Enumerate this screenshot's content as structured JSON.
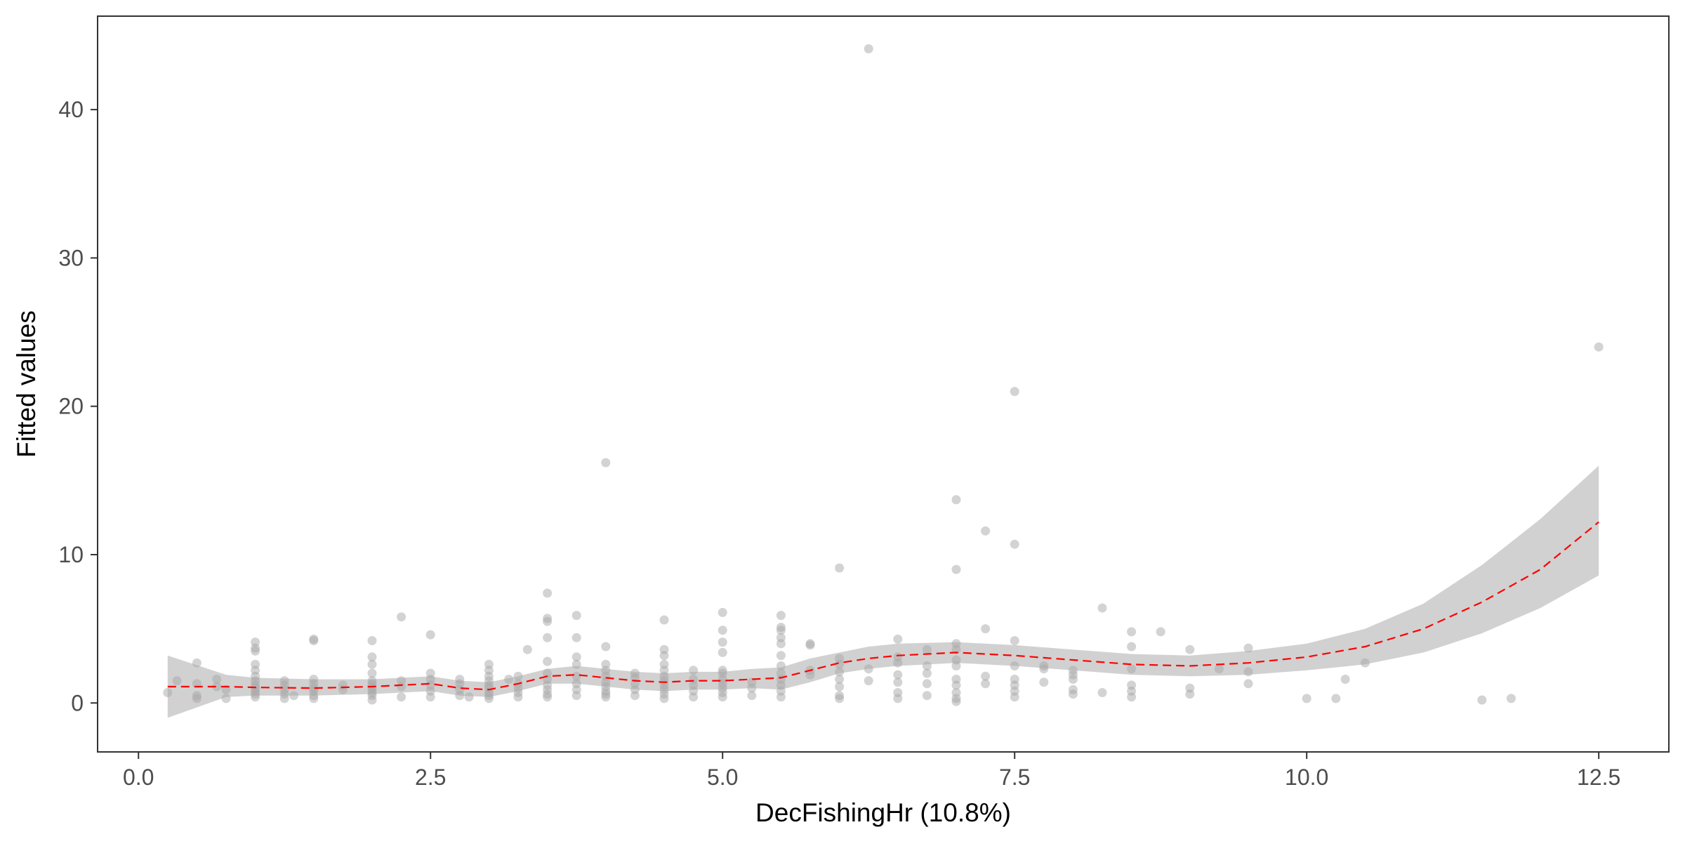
{
  "chart_data": {
    "type": "scatter",
    "title": "",
    "xlabel": "DecFishingHr  (10.8%)",
    "ylabel": "Fitted values",
    "xlim": [
      -0.35,
      13.1
    ],
    "ylim": [
      -3.3,
      46.3
    ],
    "x_ticks": [
      0.0,
      2.5,
      5.0,
      7.5,
      10.0,
      12.5
    ],
    "x_tick_labels": [
      "0.0",
      "2.5",
      "5.0",
      "7.5",
      "10.0",
      "12.5"
    ],
    "y_ticks": [
      0,
      10,
      20,
      30,
      40
    ],
    "y_tick_labels": [
      "0",
      "10",
      "20",
      "30",
      "40"
    ],
    "grid": false,
    "legend": "none",
    "colors": {
      "points": "#a8a8a8",
      "smooth_line": "#ff0000",
      "confidence_band": "#bdbdbd",
      "frame": "#333333",
      "text": "#4d4d4d"
    },
    "series": [
      {
        "type": "scatter",
        "points": [
          [
            0.25,
            0.7
          ],
          [
            0.33,
            1.5
          ],
          [
            0.5,
            0.3
          ],
          [
            0.5,
            0.5
          ],
          [
            0.5,
            1.3
          ],
          [
            0.5,
            2.7
          ],
          [
            0.67,
            1.1
          ],
          [
            0.67,
            1.6
          ],
          [
            0.75,
            0.3
          ],
          [
            0.75,
            0.9
          ],
          [
            1.0,
            0.4
          ],
          [
            1.0,
            0.6
          ],
          [
            1.0,
            0.8
          ],
          [
            1.0,
            1.0
          ],
          [
            1.0,
            1.2
          ],
          [
            1.0,
            1.5
          ],
          [
            1.0,
            1.8
          ],
          [
            1.0,
            2.2
          ],
          [
            1.0,
            2.6
          ],
          [
            1.0,
            3.5
          ],
          [
            1.0,
            3.7
          ],
          [
            1.0,
            4.1
          ],
          [
            1.25,
            0.3
          ],
          [
            1.25,
            0.6
          ],
          [
            1.25,
            0.9
          ],
          [
            1.25,
            1.2
          ],
          [
            1.25,
            1.5
          ],
          [
            1.33,
            0.5
          ],
          [
            1.5,
            0.3
          ],
          [
            1.5,
            0.5
          ],
          [
            1.5,
            0.8
          ],
          [
            1.5,
            1.0
          ],
          [
            1.5,
            1.3
          ],
          [
            1.5,
            1.6
          ],
          [
            1.5,
            4.2
          ],
          [
            1.5,
            4.3
          ],
          [
            1.75,
            0.9
          ],
          [
            1.75,
            1.2
          ],
          [
            2.0,
            0.2
          ],
          [
            2.0,
            0.5
          ],
          [
            2.0,
            0.7
          ],
          [
            2.0,
            0.9
          ],
          [
            2.0,
            1.1
          ],
          [
            2.0,
            1.3
          ],
          [
            2.0,
            1.5
          ],
          [
            2.0,
            2.0
          ],
          [
            2.0,
            2.6
          ],
          [
            2.0,
            3.1
          ],
          [
            2.0,
            4.2
          ],
          [
            2.25,
            0.4
          ],
          [
            2.25,
            1.1
          ],
          [
            2.25,
            1.5
          ],
          [
            2.25,
            5.8
          ],
          [
            2.5,
            0.4
          ],
          [
            2.5,
            0.8
          ],
          [
            2.5,
            1.2
          ],
          [
            2.5,
            1.6
          ],
          [
            2.5,
            2.0
          ],
          [
            2.5,
            4.6
          ],
          [
            2.75,
            0.5
          ],
          [
            2.75,
            0.9
          ],
          [
            2.75,
            1.3
          ],
          [
            2.75,
            1.6
          ],
          [
            2.83,
            0.4
          ],
          [
            3.0,
            0.3
          ],
          [
            3.0,
            0.5
          ],
          [
            3.0,
            0.7
          ],
          [
            3.0,
            1.0
          ],
          [
            3.0,
            1.2
          ],
          [
            3.0,
            1.5
          ],
          [
            3.0,
            1.8
          ],
          [
            3.0,
            2.2
          ],
          [
            3.0,
            2.6
          ],
          [
            3.17,
            1.6
          ],
          [
            3.25,
            0.4
          ],
          [
            3.25,
            0.7
          ],
          [
            3.25,
            1.0
          ],
          [
            3.25,
            1.3
          ],
          [
            3.25,
            1.8
          ],
          [
            3.33,
            3.6
          ],
          [
            3.5,
            0.4
          ],
          [
            3.5,
            0.6
          ],
          [
            3.5,
            0.9
          ],
          [
            3.5,
            1.2
          ],
          [
            3.5,
            1.6
          ],
          [
            3.5,
            2.0
          ],
          [
            3.5,
            2.8
          ],
          [
            3.5,
            4.4
          ],
          [
            3.5,
            5.5
          ],
          [
            3.5,
            5.7
          ],
          [
            3.5,
            7.4
          ],
          [
            3.75,
            0.5
          ],
          [
            3.75,
            0.9
          ],
          [
            3.75,
            1.3
          ],
          [
            3.75,
            1.8
          ],
          [
            3.75,
            2.6
          ],
          [
            3.75,
            3.1
          ],
          [
            3.75,
            4.4
          ],
          [
            3.75,
            5.9
          ],
          [
            4.0,
            0.4
          ],
          [
            4.0,
            0.6
          ],
          [
            4.0,
            0.8
          ],
          [
            4.0,
            1.1
          ],
          [
            4.0,
            1.4
          ],
          [
            4.0,
            1.8
          ],
          [
            4.0,
            2.2
          ],
          [
            4.0,
            2.6
          ],
          [
            4.0,
            3.8
          ],
          [
            4.0,
            16.2
          ],
          [
            4.25,
            0.5
          ],
          [
            4.25,
            0.9
          ],
          [
            4.25,
            1.3
          ],
          [
            4.25,
            1.7
          ],
          [
            4.25,
            2.0
          ],
          [
            4.5,
            0.3
          ],
          [
            4.5,
            0.6
          ],
          [
            4.5,
            0.9
          ],
          [
            4.5,
            1.2
          ],
          [
            4.5,
            1.5
          ],
          [
            4.5,
            1.8
          ],
          [
            4.5,
            2.2
          ],
          [
            4.5,
            2.6
          ],
          [
            4.5,
            3.2
          ],
          [
            4.5,
            3.6
          ],
          [
            4.5,
            5.6
          ],
          [
            4.75,
            0.4
          ],
          [
            4.75,
            0.8
          ],
          [
            4.75,
            1.2
          ],
          [
            4.75,
            1.6
          ],
          [
            4.75,
            2.2
          ],
          [
            5.0,
            0.4
          ],
          [
            5.0,
            0.7
          ],
          [
            5.0,
            1.0
          ],
          [
            5.0,
            1.3
          ],
          [
            5.0,
            1.6
          ],
          [
            5.0,
            2.0
          ],
          [
            5.0,
            2.2
          ],
          [
            5.0,
            3.4
          ],
          [
            5.0,
            4.1
          ],
          [
            5.0,
            4.9
          ],
          [
            5.0,
            6.1
          ],
          [
            5.25,
            0.5
          ],
          [
            5.25,
            1.0
          ],
          [
            5.25,
            1.4
          ],
          [
            5.5,
            0.4
          ],
          [
            5.5,
            0.8
          ],
          [
            5.5,
            1.2
          ],
          [
            5.5,
            1.6
          ],
          [
            5.5,
            2.0
          ],
          [
            5.5,
            2.5
          ],
          [
            5.5,
            3.2
          ],
          [
            5.5,
            4.0
          ],
          [
            5.5,
            4.4
          ],
          [
            5.5,
            4.9
          ],
          [
            5.5,
            5.1
          ],
          [
            5.5,
            5.9
          ],
          [
            5.75,
            1.9
          ],
          [
            5.75,
            2.2
          ],
          [
            5.75,
            3.9
          ],
          [
            5.75,
            4.0
          ],
          [
            6.0,
            0.3
          ],
          [
            6.0,
            0.5
          ],
          [
            6.0,
            1.1
          ],
          [
            6.0,
            1.6
          ],
          [
            6.0,
            2.1
          ],
          [
            6.0,
            2.6
          ],
          [
            6.0,
            3.0
          ],
          [
            6.0,
            9.1
          ],
          [
            6.25,
            1.5
          ],
          [
            6.25,
            2.3
          ],
          [
            6.25,
            44.1
          ],
          [
            6.5,
            0.3
          ],
          [
            6.5,
            0.7
          ],
          [
            6.5,
            1.4
          ],
          [
            6.5,
            1.9
          ],
          [
            6.5,
            2.7
          ],
          [
            6.5,
            3.1
          ],
          [
            6.5,
            4.3
          ],
          [
            6.75,
            0.5
          ],
          [
            6.75,
            1.3
          ],
          [
            6.75,
            2.0
          ],
          [
            6.75,
            2.5
          ],
          [
            6.75,
            3.6
          ],
          [
            7.0,
            0.1
          ],
          [
            7.0,
            0.3
          ],
          [
            7.0,
            0.7
          ],
          [
            7.0,
            1.2
          ],
          [
            7.0,
            1.6
          ],
          [
            7.0,
            2.5
          ],
          [
            7.0,
            2.9
          ],
          [
            7.0,
            3.6
          ],
          [
            7.0,
            4.0
          ],
          [
            7.0,
            9.0
          ],
          [
            7.0,
            13.7
          ],
          [
            7.25,
            1.3
          ],
          [
            7.25,
            1.8
          ],
          [
            7.25,
            5.0
          ],
          [
            7.25,
            11.6
          ],
          [
            7.5,
            0.4
          ],
          [
            7.5,
            0.8
          ],
          [
            7.5,
            1.2
          ],
          [
            7.5,
            1.6
          ],
          [
            7.5,
            2.5
          ],
          [
            7.5,
            4.2
          ],
          [
            7.5,
            10.7
          ],
          [
            7.5,
            21.0
          ],
          [
            7.75,
            1.4
          ],
          [
            7.75,
            2.3
          ],
          [
            7.75,
            2.5
          ],
          [
            8.0,
            0.6
          ],
          [
            8.0,
            0.9
          ],
          [
            8.0,
            1.6
          ],
          [
            8.0,
            1.9
          ],
          [
            8.0,
            2.2
          ],
          [
            8.25,
            0.7
          ],
          [
            8.25,
            6.4
          ],
          [
            8.5,
            0.4
          ],
          [
            8.5,
            0.8
          ],
          [
            8.5,
            1.2
          ],
          [
            8.5,
            2.3
          ],
          [
            8.5,
            3.8
          ],
          [
            8.5,
            4.8
          ],
          [
            8.75,
            4.8
          ],
          [
            9.0,
            0.6
          ],
          [
            9.0,
            1.0
          ],
          [
            9.0,
            3.6
          ],
          [
            9.25,
            2.3
          ],
          [
            9.5,
            1.3
          ],
          [
            9.5,
            2.1
          ],
          [
            9.5,
            3.7
          ],
          [
            10.0,
            0.3
          ],
          [
            10.25,
            0.3
          ],
          [
            10.33,
            1.6
          ],
          [
            10.5,
            2.7
          ],
          [
            11.5,
            0.2
          ],
          [
            11.75,
            0.3
          ],
          [
            12.5,
            24.0
          ]
        ]
      },
      {
        "type": "smooth",
        "line_style": "dashed",
        "x": [
          0.25,
          0.75,
          1.0,
          1.5,
          2.0,
          2.25,
          2.5,
          2.75,
          3.0,
          3.25,
          3.5,
          3.75,
          4.0,
          4.25,
          4.5,
          4.75,
          5.0,
          5.25,
          5.5,
          5.75,
          6.0,
          6.25,
          6.5,
          7.0,
          7.5,
          8.0,
          8.5,
          9.0,
          9.5,
          10.0,
          10.5,
          11.0,
          11.5,
          12.0,
          12.5
        ],
        "y": [
          1.1,
          1.1,
          1.05,
          1.0,
          1.1,
          1.2,
          1.3,
          1.0,
          0.9,
          1.3,
          1.8,
          1.9,
          1.7,
          1.5,
          1.4,
          1.5,
          1.5,
          1.6,
          1.7,
          2.2,
          2.7,
          3.0,
          3.2,
          3.4,
          3.2,
          2.9,
          2.6,
          2.5,
          2.7,
          3.1,
          3.8,
          5.0,
          6.8,
          9.0,
          12.2
        ],
        "lower": [
          -1.0,
          0.4,
          0.5,
          0.5,
          0.6,
          0.7,
          0.8,
          0.5,
          0.4,
          0.8,
          1.3,
          1.3,
          1.1,
          0.9,
          0.8,
          0.9,
          0.9,
          1.0,
          0.9,
          1.4,
          2.0,
          2.3,
          2.5,
          2.7,
          2.5,
          2.2,
          1.9,
          1.8,
          1.9,
          2.2,
          2.6,
          3.4,
          4.7,
          6.4,
          8.6
        ],
        "upper": [
          3.2,
          1.9,
          1.7,
          1.6,
          1.6,
          1.7,
          1.8,
          1.5,
          1.4,
          1.8,
          2.3,
          2.5,
          2.3,
          2.1,
          2.0,
          2.1,
          2.1,
          2.3,
          2.4,
          3.0,
          3.4,
          3.8,
          4.0,
          4.1,
          3.9,
          3.6,
          3.3,
          3.2,
          3.5,
          4.0,
          5.0,
          6.7,
          9.3,
          12.4,
          16.0
        ]
      }
    ]
  }
}
